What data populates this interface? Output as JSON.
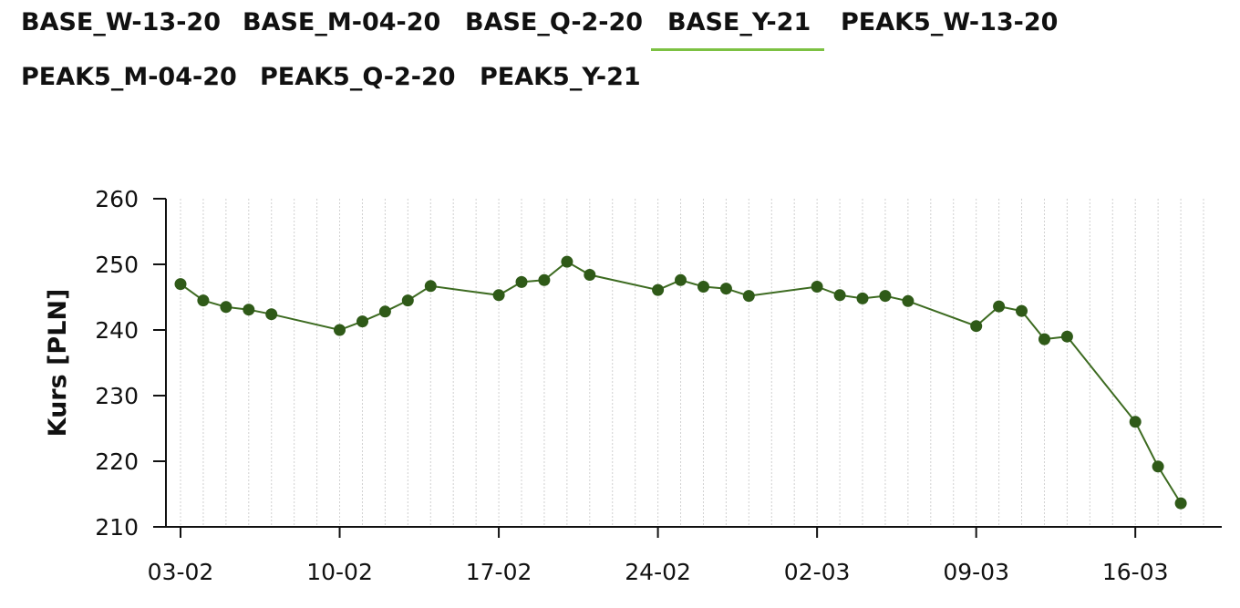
{
  "tabs": [
    {
      "label": "BASE_W-13-20",
      "active": false
    },
    {
      "label": "BASE_M-04-20",
      "active": false
    },
    {
      "label": "BASE_Q-2-20",
      "active": false
    },
    {
      "label": "BASE_Y-21",
      "active": true
    },
    {
      "label": "PEAK5_W-13-20",
      "active": false
    },
    {
      "label": "PEAK5_M-04-20",
      "active": false
    },
    {
      "label": "PEAK5_Q-2-20",
      "active": false
    },
    {
      "label": "PEAK5_Y-21",
      "active": false
    }
  ],
  "colors": {
    "active_tab_underline": "#7cc142",
    "series_line": "#3d6b21",
    "series_point": "#2f5a18",
    "grid": "#d0d0d0",
    "axis": "#111111"
  },
  "chart_data": {
    "type": "line",
    "title": "",
    "xlabel": "",
    "ylabel": "Kurs [PLN]",
    "ylim": [
      210,
      260
    ],
    "yticks": [
      210,
      220,
      230,
      240,
      250,
      260
    ],
    "x_start": "2020-02-03",
    "x_end": "2020-03-19",
    "x_tick_labels": [
      {
        "date": "2020-02-03",
        "label": "03-02"
      },
      {
        "date": "2020-02-10",
        "label": "10-02"
      },
      {
        "date": "2020-02-17",
        "label": "17-02"
      },
      {
        "date": "2020-02-24",
        "label": "24-02"
      },
      {
        "date": "2020-03-02",
        "label": "02-03"
      },
      {
        "date": "2020-03-09",
        "label": "09-03"
      },
      {
        "date": "2020-03-16",
        "label": "16-03"
      }
    ],
    "grid": "vertical-dotted",
    "series": [
      {
        "x": [
          "2020-02-03",
          "2020-02-04",
          "2020-02-05",
          "2020-02-06",
          "2020-02-07",
          "2020-02-10",
          "2020-02-11",
          "2020-02-12",
          "2020-02-13",
          "2020-02-14",
          "2020-02-17",
          "2020-02-18",
          "2020-02-19",
          "2020-02-20",
          "2020-02-21",
          "2020-02-24",
          "2020-02-25",
          "2020-02-26",
          "2020-02-27",
          "2020-02-28",
          "2020-03-02",
          "2020-03-03",
          "2020-03-04",
          "2020-03-05",
          "2020-03-06",
          "2020-03-09",
          "2020-03-10",
          "2020-03-11",
          "2020-03-12",
          "2020-03-13",
          "2020-03-16",
          "2020-03-17",
          "2020-03-18"
        ],
        "values": [
          247.0,
          244.5,
          243.5,
          243.1,
          242.4,
          240.0,
          241.3,
          242.8,
          244.5,
          246.7,
          245.3,
          247.3,
          247.6,
          250.4,
          248.4,
          246.1,
          247.6,
          246.6,
          246.3,
          245.2,
          246.6,
          245.3,
          244.8,
          245.2,
          244.4,
          240.6,
          243.6,
          242.9,
          238.6,
          239.0,
          226.0,
          219.2,
          213.6
        ]
      }
    ]
  }
}
